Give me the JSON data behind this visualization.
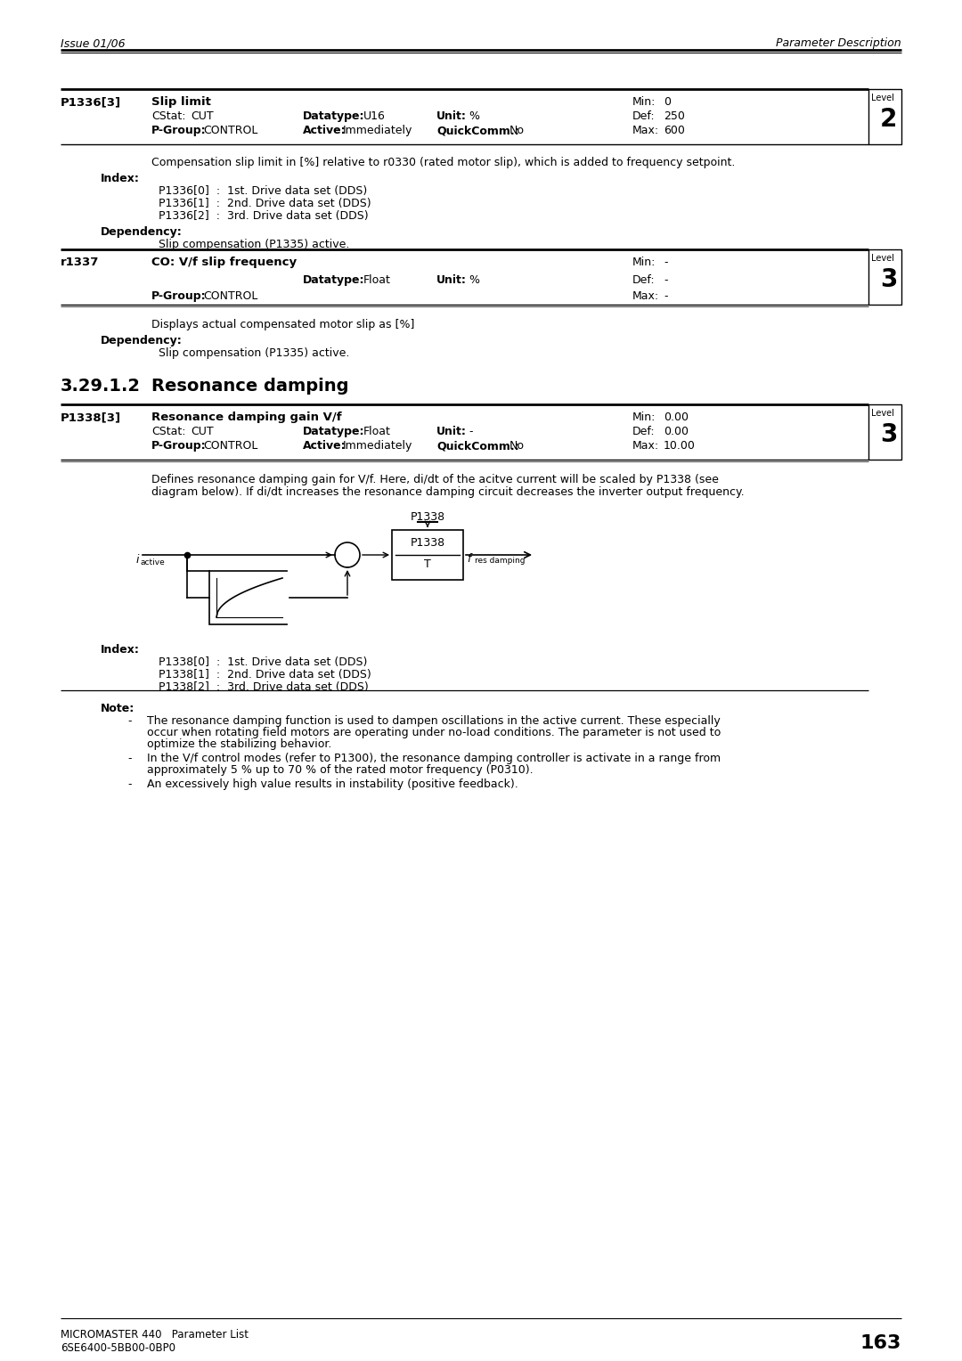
{
  "page_header_left": "Issue 01/06",
  "page_header_right": "Parameter Description",
  "bg_color": "#ffffff",
  "text_color": "#000000",
  "page_number": "163",
  "footer_left1": "MICROMASTER 440   Parameter List",
  "footer_left2": "6SE6400-5BB00-0BP0",
  "param1_id": "P1336[3]",
  "param1_name": "Slip limit",
  "param1_cstat": "CUT",
  "param1_datatype": "U16",
  "param1_unit": "%",
  "param1_min": "0",
  "param1_def": "250",
  "param1_max": "600",
  "param1_active": "Immediately",
  "param1_quickcomm": "No",
  "param1_pgroup": "CONTROL",
  "param1_level": "2",
  "param1_desc": "Compensation slip limit in [%] relative to r0330 (rated motor slip), which is added to frequency setpoint.",
  "param1_index_label": "Index:",
  "param1_index0": "P1336[0]  :  1st. Drive data set (DDS)",
  "param1_index1": "P1336[1]  :  2nd. Drive data set (DDS)",
  "param1_index2": "P1336[2]  :  3rd. Drive data set (DDS)",
  "param1_dep_label": "Dependency:",
  "param1_dep": "Slip compensation (P1335) active.",
  "param2_id": "r1337",
  "param2_name": "CO: V/f slip frequency",
  "param2_datatype": "Float",
  "param2_unit": "%",
  "param2_min": "-",
  "param2_def": "-",
  "param2_max": "-",
  "param2_pgroup": "CONTROL",
  "param2_level": "3",
  "param2_desc": "Displays actual compensated motor slip as [%]",
  "param2_dep_label": "Dependency:",
  "param2_dep": "Slip compensation (P1335) active.",
  "section_num": "3.29.1.2",
  "section_name": "Resonance damping",
  "param3_id": "P1338[3]",
  "param3_name": "Resonance damping gain V/f",
  "param3_cstat": "CUT",
  "param3_datatype": "Float",
  "param3_unit": "-",
  "param3_min": "0.00",
  "param3_def": "0.00",
  "param3_max": "10.00",
  "param3_active": "Immediately",
  "param3_quickcomm": "No",
  "param3_pgroup": "CONTROL",
  "param3_level": "3",
  "param3_desc1": "Defines resonance damping gain for V/f. Here, di/dt of the acitve current will be scaled by P1338 (see",
  "param3_desc2": "diagram below). If di/dt increases the resonance damping circuit decreases the inverter output frequency.",
  "param3_index_label": "Index:",
  "param3_index0": "P1338[0]  :  1st. Drive data set (DDS)",
  "param3_index1": "P1338[1]  :  2nd. Drive data set (DDS)",
  "param3_index2": "P1338[2]  :  3rd. Drive data set (DDS)",
  "param3_note_label": "Note:",
  "param3_note1a": "The resonance damping function is used to dampen oscillations in the active current. These especially",
  "param3_note1b": "occur when rotating field motors are operating under no-load conditions. The parameter is not used to",
  "param3_note1c": "optimize the stabilizing behavior.",
  "param3_note2a": "In the V/f control modes (refer to P1300), the resonance damping controller is activate in a range from",
  "param3_note2b": "approximately 5 % up to 70 % of the rated motor frequency (P0310).",
  "param3_note3": "An excessively high value results in instability (positive feedback)."
}
